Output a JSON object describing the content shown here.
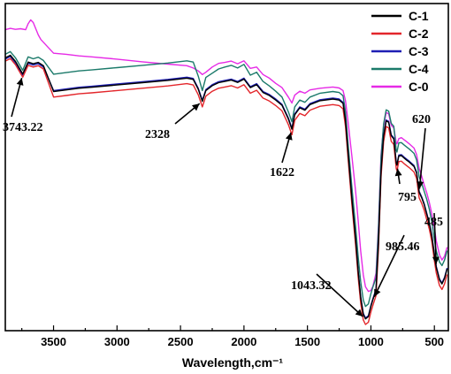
{
  "chart_data": {
    "type": "line",
    "title": "",
    "xlabel": "Wavelength,cm⁻¹",
    "ylabel": "",
    "x_reversed": true,
    "xlim": [
      3880,
      390
    ],
    "ylim": [
      0,
      100
    ],
    "y_axis_ticks": false,
    "x_ticks": [
      3500,
      3000,
      2500,
      2000,
      1500,
      1000,
      500
    ],
    "x_tick_labels": [
      "3500",
      "3000",
      "2500",
      "2000",
      "1500",
      "1000",
      "500"
    ],
    "legend_position": "top-right",
    "grid": false,
    "series": [
      {
        "name": "C-1",
        "color": "#000000",
        "x": [
          3880,
          3840,
          3800,
          3743,
          3700,
          3660,
          3620,
          3580,
          3500,
          3400,
          3300,
          3200,
          3000,
          2800,
          2600,
          2450,
          2400,
          2360,
          2328,
          2300,
          2250,
          2200,
          2150,
          2100,
          2050,
          2000,
          1950,
          1900,
          1850,
          1800,
          1750,
          1700,
          1650,
          1622,
          1600,
          1560,
          1520,
          1480,
          1400,
          1300,
          1250,
          1220,
          1200,
          1180,
          1150,
          1120,
          1100,
          1080,
          1060,
          1043,
          1020,
          1000,
          985,
          960,
          940,
          920,
          900,
          880,
          860,
          840,
          820,
          800,
          795,
          780,
          760,
          740,
          720,
          700,
          680,
          660,
          640,
          620,
          600,
          580,
          560,
          540,
          520,
          500,
          485,
          460,
          440,
          420,
          400
        ],
        "y": [
          83.4,
          84.2,
          82.3,
          78.5,
          82.1,
          81.6,
          82.0,
          81.0,
          73.1,
          73.6,
          74.1,
          74.4,
          75.1,
          75.8,
          76.5,
          77.2,
          76.8,
          73.8,
          70.1,
          73.4,
          74.9,
          75.8,
          76.2,
          76.6,
          75.9,
          76.9,
          74.3,
          75.2,
          72.8,
          71.9,
          70.5,
          68.9,
          64.7,
          61.6,
          66.0,
          68.1,
          67.4,
          69.1,
          70.3,
          70.8,
          70.5,
          69.5,
          64.1,
          54.3,
          40.3,
          27.6,
          17.8,
          10.1,
          5.0,
          3.6,
          4.3,
          7.4,
          9.4,
          12.4,
          26.8,
          48.7,
          59.5,
          64.1,
          63.7,
          59.6,
          58.6,
          51.2,
          50.6,
          53.4,
          53.5,
          52.8,
          52.2,
          51.6,
          50.9,
          50.2,
          48.2,
          42.3,
          40.6,
          38.5,
          35.6,
          32.7,
          28.9,
          23.1,
          19.3,
          15.5,
          14.3,
          16.0,
          18.9
        ]
      },
      {
        "name": "C-2",
        "color": "#e3262b",
        "x": [
          3880,
          3840,
          3800,
          3743,
          3700,
          3660,
          3620,
          3580,
          3500,
          3400,
          3300,
          3200,
          3000,
          2800,
          2600,
          2450,
          2400,
          2360,
          2328,
          2300,
          2250,
          2200,
          2150,
          2100,
          2050,
          2000,
          1950,
          1900,
          1850,
          1800,
          1750,
          1700,
          1650,
          1622,
          1600,
          1560,
          1520,
          1480,
          1400,
          1300,
          1250,
          1220,
          1200,
          1180,
          1150,
          1120,
          1100,
          1080,
          1060,
          1043,
          1020,
          1000,
          985,
          960,
          940,
          920,
          900,
          880,
          860,
          840,
          820,
          800,
          795,
          780,
          760,
          740,
          720,
          700,
          680,
          660,
          640,
          620,
          600,
          580,
          560,
          540,
          520,
          500,
          485,
          460,
          440,
          420,
          400
        ],
        "y": [
          82.4,
          83.2,
          81.3,
          77.5,
          81.1,
          80.6,
          81.0,
          80.0,
          71.4,
          71.9,
          72.4,
          72.7,
          73.4,
          74.1,
          74.8,
          75.5,
          75.1,
          72.1,
          68.4,
          71.7,
          73.2,
          74.1,
          74.5,
          74.9,
          74.2,
          75.2,
          72.6,
          73.5,
          71.1,
          70.2,
          68.8,
          67.2,
          63.0,
          59.9,
          64.3,
          66.4,
          65.7,
          67.4,
          68.6,
          69.1,
          68.8,
          67.8,
          62.4,
          52.6,
          38.6,
          25.9,
          16.1,
          8.4,
          3.3,
          1.9,
          2.6,
          5.7,
          7.7,
          10.7,
          25.1,
          47.0,
          57.8,
          62.4,
          62.0,
          57.9,
          56.9,
          49.5,
          48.9,
          51.7,
          51.8,
          51.1,
          50.5,
          49.9,
          49.2,
          48.5,
          46.5,
          40.6,
          38.9,
          36.8,
          33.9,
          31.0,
          27.2,
          21.4,
          17.6,
          13.8,
          12.6,
          14.3,
          17.2
        ]
      },
      {
        "name": "C-3",
        "color": "#1f1fb4",
        "x": [
          3880,
          3840,
          3800,
          3743,
          3700,
          3660,
          3620,
          3580,
          3500,
          3400,
          3300,
          3200,
          3000,
          2800,
          2600,
          2450,
          2400,
          2360,
          2328,
          2300,
          2250,
          2200,
          2150,
          2100,
          2050,
          2000,
          1950,
          1900,
          1850,
          1800,
          1750,
          1700,
          1650,
          1622,
          1600,
          1560,
          1520,
          1480,
          1400,
          1300,
          1250,
          1220,
          1200,
          1180,
          1150,
          1120,
          1100,
          1080,
          1060,
          1043,
          1020,
          1000,
          985,
          960,
          940,
          920,
          900,
          880,
          860,
          840,
          820,
          800,
          795,
          780,
          760,
          740,
          720,
          700,
          680,
          660,
          640,
          620,
          600,
          580,
          560,
          540,
          520,
          500,
          485,
          460,
          440,
          420,
          400
        ],
        "y": [
          83.0,
          83.8,
          81.9,
          78.1,
          81.7,
          81.2,
          81.6,
          80.6,
          73.4,
          73.9,
          74.4,
          74.7,
          75.4,
          76.1,
          76.8,
          77.5,
          77.1,
          74.1,
          70.4,
          73.7,
          75.2,
          76.1,
          76.5,
          76.9,
          76.2,
          77.2,
          74.6,
          75.5,
          73.1,
          72.2,
          70.8,
          69.2,
          65.0,
          61.9,
          66.3,
          68.4,
          67.7,
          69.4,
          70.6,
          71.1,
          70.8,
          69.8,
          64.4,
          54.6,
          40.6,
          27.9,
          18.1,
          10.4,
          5.3,
          3.9,
          4.6,
          7.7,
          9.7,
          12.7,
          27.1,
          49.0,
          59.8,
          64.4,
          64.0,
          59.9,
          58.9,
          51.5,
          50.9,
          53.7,
          53.8,
          53.1,
          52.5,
          51.9,
          51.2,
          50.5,
          48.5,
          42.6,
          40.9,
          38.8,
          35.9,
          33.0,
          29.2,
          23.4,
          19.6,
          15.8,
          14.6,
          16.3,
          19.2
        ]
      },
      {
        "name": "C-4",
        "color": "#1b7a6a",
        "x": [
          3880,
          3840,
          3800,
          3743,
          3700,
          3660,
          3620,
          3580,
          3500,
          3400,
          3300,
          3200,
          3000,
          2800,
          2600,
          2450,
          2400,
          2360,
          2328,
          2300,
          2250,
          2200,
          2150,
          2100,
          2050,
          2000,
          1950,
          1900,
          1850,
          1800,
          1750,
          1700,
          1650,
          1622,
          1600,
          1560,
          1520,
          1480,
          1400,
          1300,
          1250,
          1220,
          1200,
          1180,
          1150,
          1120,
          1100,
          1080,
          1060,
          1043,
          1020,
          1000,
          985,
          960,
          940,
          920,
          900,
          880,
          860,
          840,
          820,
          800,
          795,
          780,
          760,
          740,
          720,
          700,
          680,
          660,
          640,
          620,
          600,
          580,
          560,
          540,
          520,
          500,
          485,
          460,
          440,
          420,
          400
        ],
        "y": [
          84.5,
          85.3,
          83.4,
          79.6,
          83.7,
          83.1,
          83.6,
          82.6,
          78.4,
          78.9,
          79.4,
          79.7,
          80.4,
          81.1,
          81.8,
          82.5,
          82.1,
          77.8,
          73.4,
          77.4,
          78.7,
          80.0,
          80.6,
          81.1,
          80.3,
          81.4,
          78.1,
          79.0,
          76.2,
          74.8,
          73.2,
          71.4,
          66.9,
          63.9,
          68.4,
          70.5,
          69.8,
          71.4,
          72.6,
          73.1,
          72.8,
          71.8,
          66.9,
          57.1,
          43.9,
          31.5,
          22.4,
          14.9,
          9.4,
          7.4,
          8.2,
          11.3,
          13.3,
          16.1,
          31.4,
          52.8,
          63.2,
          67.5,
          67.1,
          63.4,
          62.5,
          55.2,
          54.6,
          57.4,
          57.5,
          56.8,
          56.2,
          55.6,
          54.9,
          54.2,
          52.2,
          47.0,
          45.0,
          42.6,
          40.1,
          37.1,
          33.3,
          27.9,
          24.3,
          21.0,
          19.9,
          21.6,
          24.5
        ]
      },
      {
        "name": "C-0",
        "color": "#e62ae6",
        "x": [
          3880,
          3840,
          3800,
          3760,
          3720,
          3700,
          3680,
          3660,
          3620,
          3600,
          3500,
          3400,
          3300,
          3200,
          3000,
          2800,
          2600,
          2450,
          2400,
          2360,
          2328,
          2300,
          2250,
          2200,
          2150,
          2100,
          2050,
          2000,
          1950,
          1900,
          1850,
          1800,
          1750,
          1700,
          1650,
          1622,
          1600,
          1560,
          1520,
          1480,
          1400,
          1300,
          1250,
          1220,
          1200,
          1180,
          1150,
          1120,
          1100,
          1080,
          1060,
          1043,
          1020,
          1000,
          985,
          960,
          940,
          920,
          900,
          880,
          860,
          840,
          820,
          800,
          795,
          780,
          760,
          740,
          720,
          700,
          680,
          660,
          640,
          620,
          600,
          580,
          560,
          540,
          520,
          500,
          485,
          460,
          440,
          420,
          400
        ],
        "y": [
          92.0,
          92.4,
          92.1,
          92.3,
          92.0,
          93.8,
          95.0,
          94.2,
          90.4,
          89.0,
          84.8,
          84.5,
          84.0,
          83.7,
          83.0,
          82.2,
          81.5,
          81.0,
          80.3,
          79.4,
          78.3,
          79.0,
          80.6,
          81.7,
          82.0,
          82.4,
          81.6,
          82.5,
          80.2,
          80.6,
          78.3,
          77.2,
          75.6,
          74.3,
          71.4,
          69.6,
          72.0,
          73.2,
          72.6,
          73.6,
          74.1,
          74.5,
          74.2,
          73.4,
          70.3,
          63.8,
          53.4,
          42.4,
          33.4,
          24.3,
          17.1,
          13.4,
          12.0,
          12.3,
          13.5,
          17.6,
          32.4,
          53.7,
          62.5,
          66.7,
          66.3,
          62.8,
          62.0,
          57.4,
          57.1,
          58.7,
          59.0,
          58.4,
          57.8,
          57.2,
          56.5,
          55.8,
          53.8,
          49.5,
          47.2,
          44.5,
          42.1,
          39.2,
          35.7,
          31.4,
          27.4,
          23.2,
          21.6,
          22.8,
          25.5
        ]
      }
    ],
    "annotations": [
      {
        "text": "3743.22",
        "x": 3743,
        "y": 78.3
      },
      {
        "text": "2328",
        "x": 2328,
        "y": 70.1
      },
      {
        "text": "1622",
        "x": 1622,
        "y": 61.6
      },
      {
        "text": "1043.32",
        "x": 1043,
        "y": 3.6
      },
      {
        "text": "985.46",
        "x": 985,
        "y": 9.4
      },
      {
        "text": "795",
        "x": 795,
        "y": 50.6
      },
      {
        "text": "620",
        "x": 620,
        "y": 42.3
      },
      {
        "text": "485",
        "x": 485,
        "y": 19.3
      }
    ]
  }
}
